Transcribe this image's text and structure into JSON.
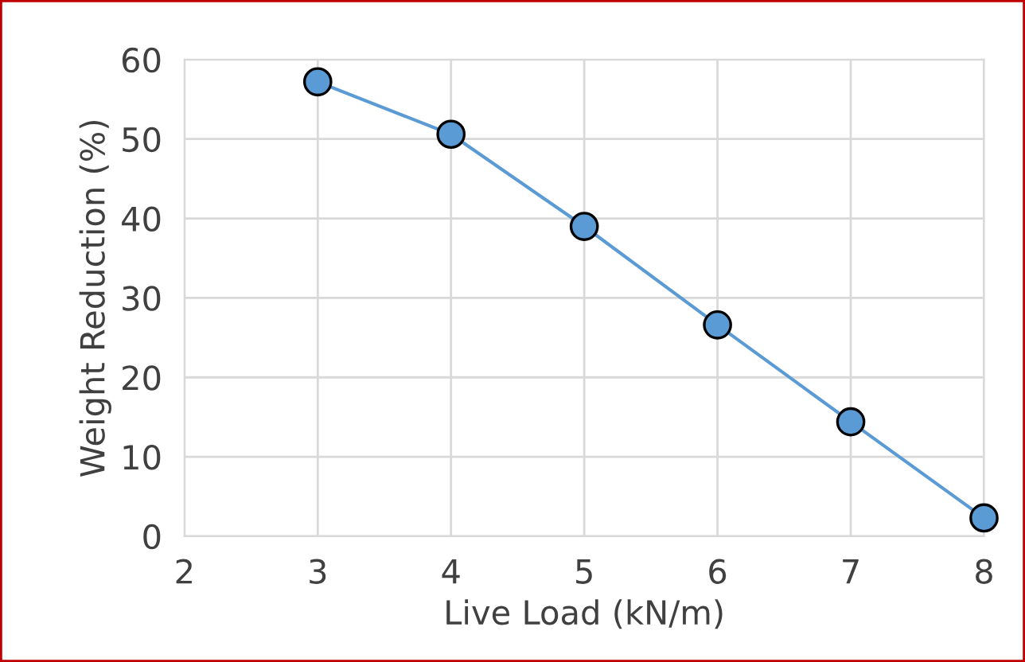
{
  "chart_data": {
    "type": "line",
    "xlabel": "Live Load (kN/m)",
    "ylabel": "Weight Reduction (%)",
    "x": [
      3,
      4,
      5,
      6,
      7,
      8
    ],
    "series": [
      {
        "color": "#5b9bd5",
        "values": [
          57.2,
          50.6,
          39,
          26.6,
          14.4,
          2.3
        ]
      }
    ],
    "xlim": [
      2,
      8
    ],
    "xticks": [
      2,
      3,
      4,
      5,
      6,
      7,
      8
    ],
    "ylim": [
      0,
      60
    ],
    "yticks": [
      0,
      10,
      20,
      30,
      40,
      50,
      60
    ],
    "grid": true,
    "marker": "circle",
    "line_style": "solid",
    "legend": false
  }
}
